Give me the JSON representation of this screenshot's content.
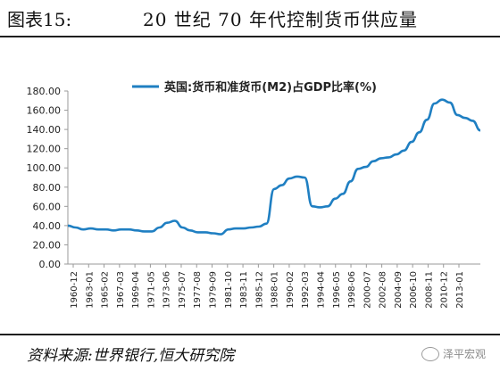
{
  "header": {
    "figure_no": "图表15:",
    "title": "20 世纪 70 年代控制货币供应量"
  },
  "footer": {
    "source": "资料来源:世界银行,恒大研究院",
    "watermark": "泽平宏观"
  },
  "colors": {
    "line": "#1f7fc2",
    "axis": "#9a9a9a",
    "text": "#222222"
  },
  "chart_data": {
    "type": "line",
    "title": "",
    "xlabel": "",
    "ylabel": "",
    "ylim": [
      0,
      180
    ],
    "yticks": [
      "0.00",
      "20.00",
      "40.00",
      "60.00",
      "80.00",
      "100.00",
      "120.00",
      "140.00",
      "160.00",
      "180.00"
    ],
    "xticks": [
      "1960-12",
      "1963-01",
      "1965-02",
      "1967-03",
      "1969-04",
      "1971-05",
      "1973-06",
      "1975-07",
      "1977-08",
      "1979-09",
      "1981-10",
      "1983-11",
      "1985-12",
      "1988-01",
      "1990-02",
      "1992-03",
      "1994-04",
      "1996-05",
      "1998-06",
      "2000-07",
      "2002-08",
      "2004-09",
      "2006-10",
      "2008-11",
      "2010-12",
      "2013-01"
    ],
    "grid": false,
    "legend_position": "top",
    "series": [
      {
        "name": "英国:货币和准货币(M2)占GDP比率(%)",
        "x": [
          1960,
          1961,
          1962,
          1963,
          1964,
          1965,
          1966,
          1967,
          1968,
          1969,
          1970,
          1971,
          1972,
          1973,
          1974,
          1975,
          1976,
          1977,
          1978,
          1979,
          1980,
          1981,
          1982,
          1983,
          1984,
          1985,
          1986,
          1987,
          1988,
          1989,
          1990,
          1991,
          1992,
          1993,
          1994,
          1995,
          1996,
          1997,
          1998,
          1999,
          2000,
          2001,
          2002,
          2003,
          2004,
          2005,
          2006,
          2007,
          2008,
          2009,
          2010,
          2011,
          2012,
          2013,
          2014
        ],
        "y": [
          40,
          38,
          36,
          37,
          36,
          36,
          35,
          36,
          36,
          35,
          34,
          34,
          38,
          43,
          45,
          38,
          35,
          33,
          33,
          32,
          31,
          36,
          37,
          37,
          38,
          39,
          42,
          78,
          82,
          89,
          91,
          90,
          60,
          59,
          60,
          68,
          73,
          86,
          99,
          101,
          107,
          110,
          111,
          114,
          118,
          127,
          137,
          150,
          167,
          171,
          168,
          155,
          152,
          149,
          139
        ]
      }
    ]
  }
}
